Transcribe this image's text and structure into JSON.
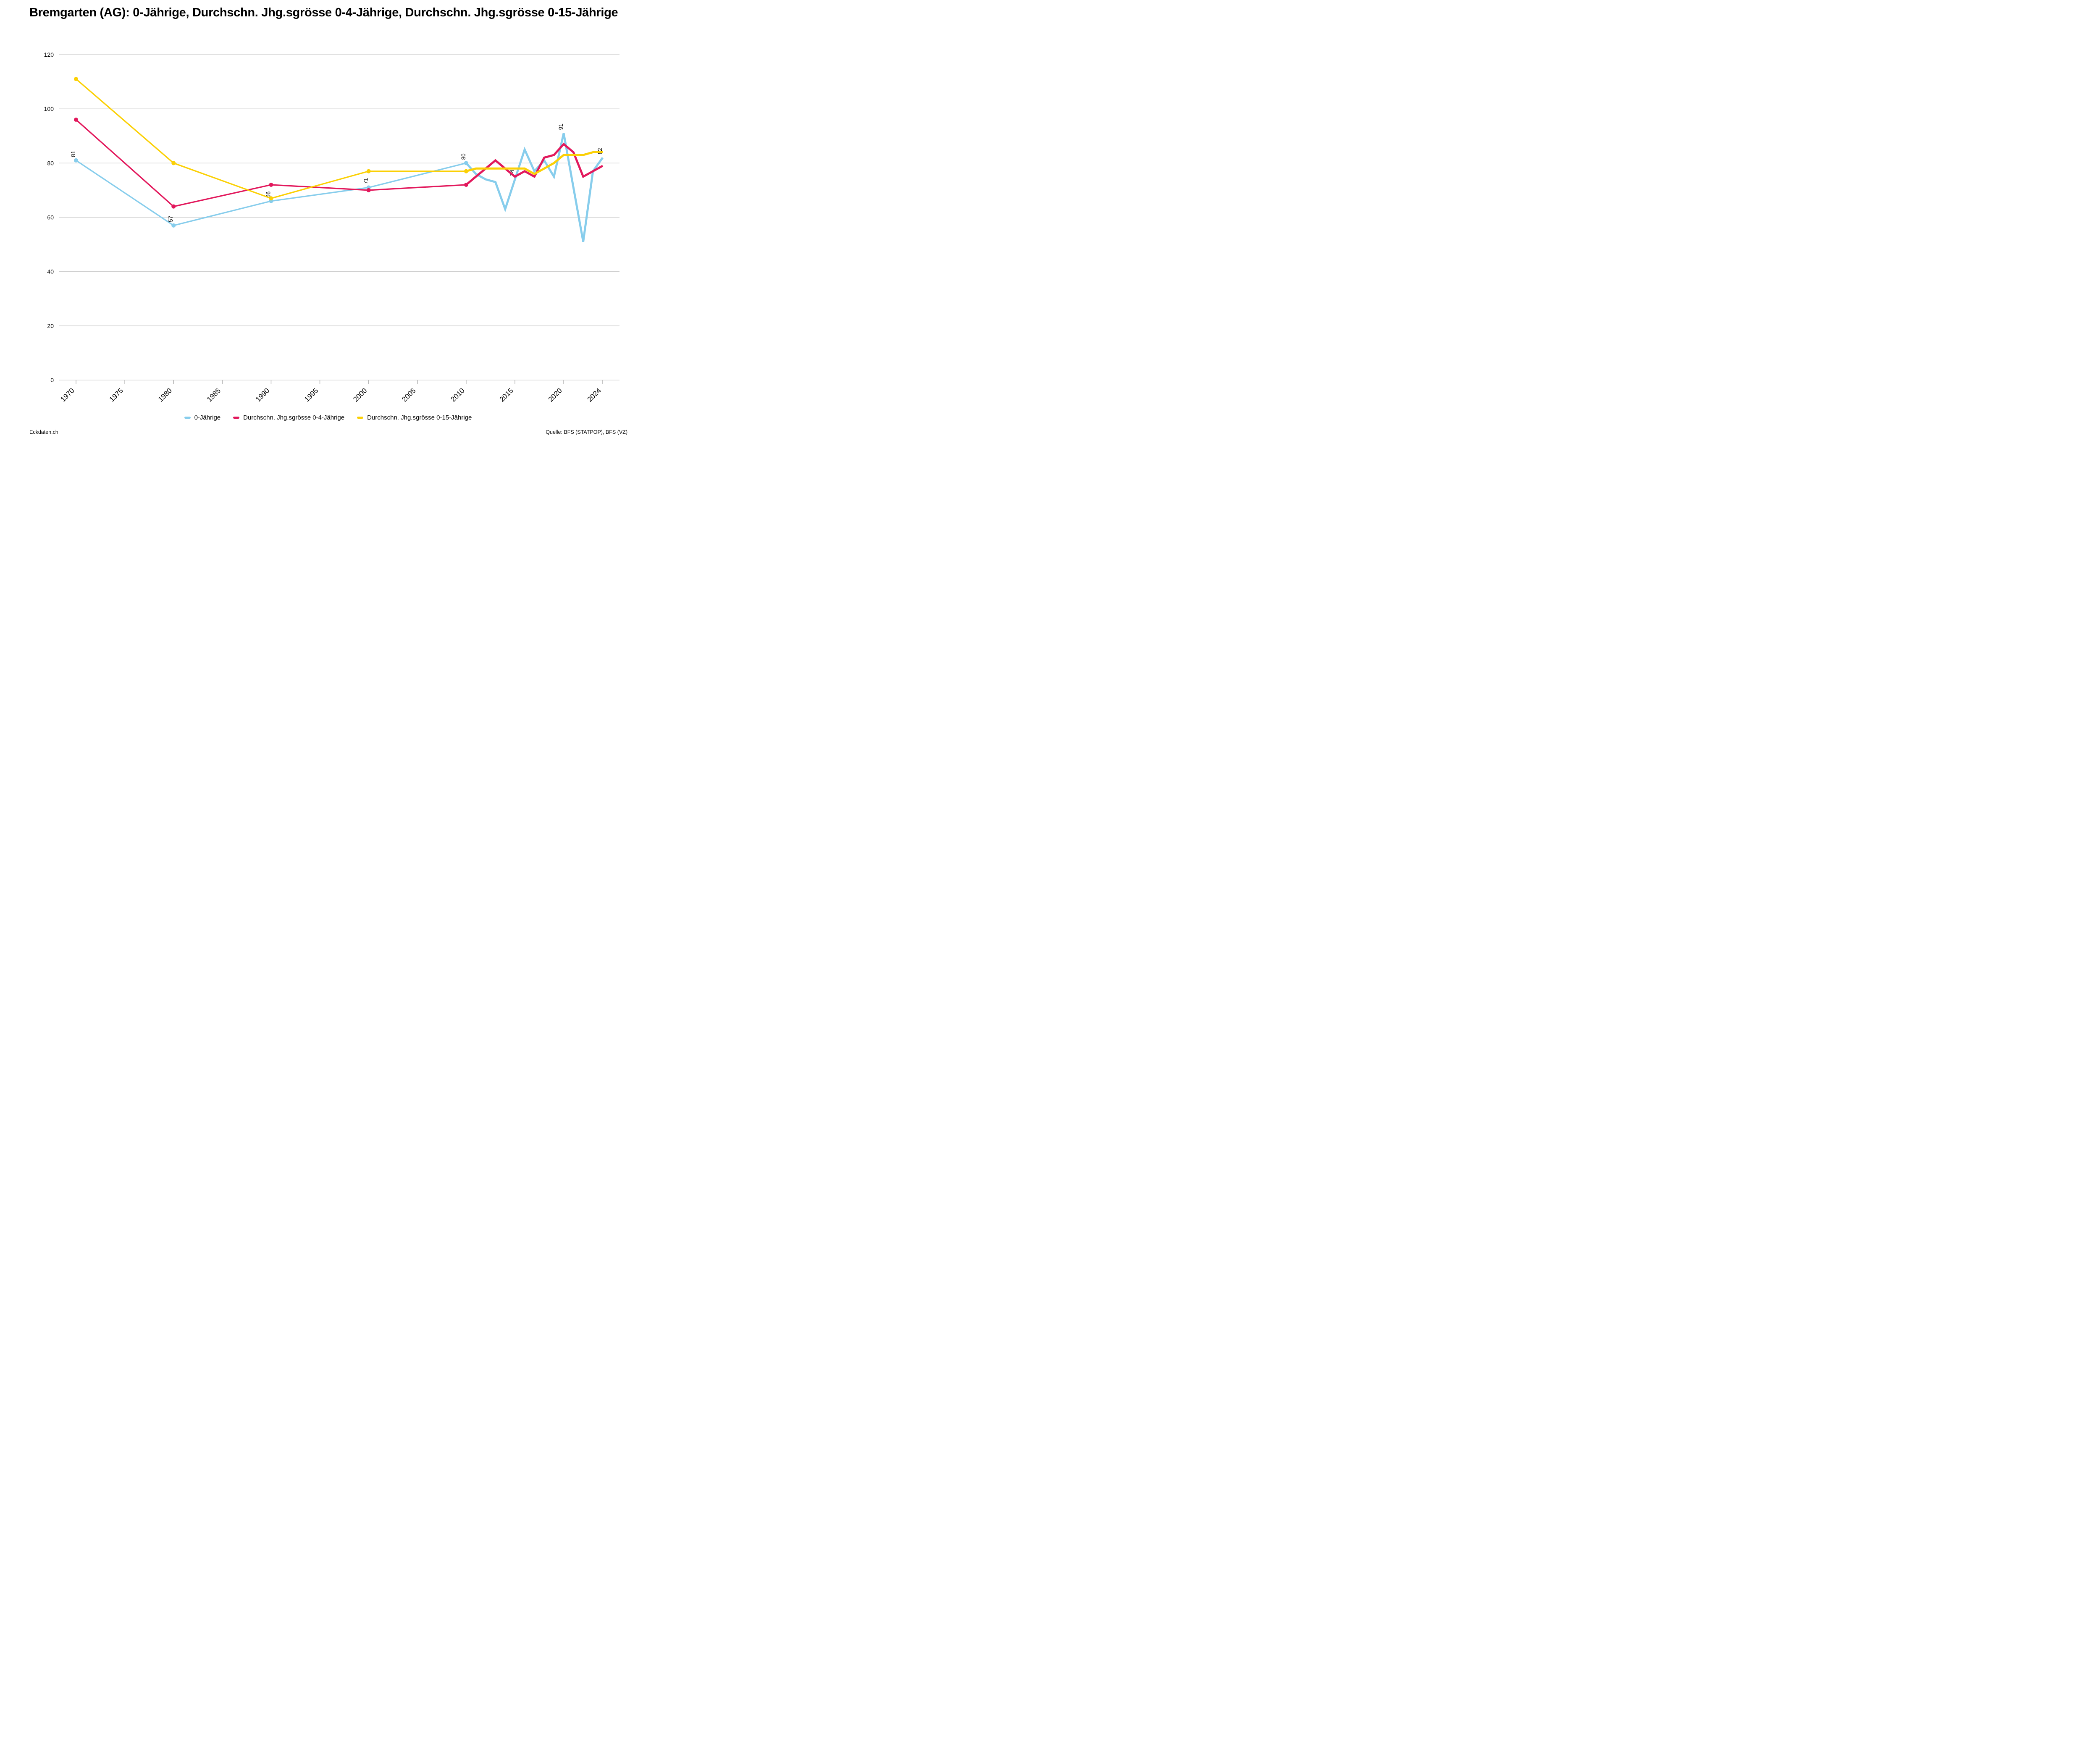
{
  "title": "Bremgarten (AG): 0-Jährige, Durchschn. Jhg.sgrösse 0-4-Jährige, Durchschn. Jhg.sgrösse 0-15-Jährige",
  "footer": {
    "left": "Eckdaten.ch",
    "right": "Quelle: BFS (STATPOP), BFS (VZ)"
  },
  "colors": {
    "blue": "#87CDEC",
    "pink": "#E2185C",
    "yellow": "#FBD005",
    "grid": "#CFCFCF",
    "tick": "#B3B3B3",
    "text": "#000000"
  },
  "chart_data": {
    "type": "line",
    "title": "Bremgarten (AG): 0-Jährige, Durchschn. Jhg.sgrösse 0-4-Jährige, Durchschn. Jhg.sgrösse 0-15-Jährige",
    "xlabel": "",
    "ylabel": "",
    "ylim": [
      0,
      120
    ],
    "y_ticks": [
      0,
      20,
      40,
      60,
      80,
      100,
      120
    ],
    "x_ticks": [
      1970,
      1975,
      1980,
      1985,
      1990,
      1995,
      2000,
      2005,
      2010,
      2015,
      2020,
      2024
    ],
    "grid": "horizontal",
    "legend_position": "bottom-center",
    "marker_years": [
      1970,
      1980,
      1990,
      2000,
      2010
    ],
    "x": [
      1970,
      1980,
      1990,
      2000,
      2010,
      2011,
      2012,
      2013,
      2014,
      2015,
      2016,
      2017,
      2018,
      2019,
      2020,
      2021,
      2022,
      2023,
      2024
    ],
    "series": [
      {
        "name": "0-Jährige",
        "color": "#87CDEC",
        "values": [
          81,
          57,
          66,
          71,
          80,
          76,
          74,
          73,
          63,
          74,
          85,
          77,
          81,
          75,
          91,
          71,
          51,
          77,
          82
        ],
        "point_labels": {
          "1970": "81",
          "1980": "57",
          "1990": "66",
          "2000": "71",
          "2010": "80",
          "2015": "74",
          "2020": "91",
          "2024": "82"
        }
      },
      {
        "name": "Durchschn. Jhg.sgrösse 0-4-Jährige",
        "color": "#E2185C",
        "values": [
          96,
          64,
          72,
          70,
          72,
          75,
          78,
          81,
          78,
          75,
          77,
          75,
          82,
          83,
          87,
          84,
          75,
          77,
          79
        ]
      },
      {
        "name": "Durchschn. Jhg.sgrösse 0-15-Jährige",
        "color": "#FBD005",
        "values": [
          111,
          80,
          67,
          77,
          77,
          78,
          78,
          78,
          78,
          78,
          78,
          76,
          78,
          80,
          83,
          83,
          83,
          84,
          84
        ]
      }
    ]
  }
}
